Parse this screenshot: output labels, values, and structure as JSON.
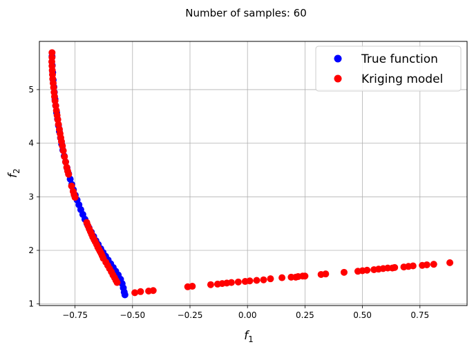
{
  "chart_data": {
    "type": "scatter",
    "title": "Number of samples: 60",
    "xlabel": "f",
    "xlabel_sub": "1",
    "ylabel": "f",
    "ylabel_sub": "2",
    "xlim": [
      -0.905,
      0.955
    ],
    "ylim": [
      0.97,
      5.9
    ],
    "xticks": [
      -0.75,
      -0.5,
      -0.25,
      0.0,
      0.25,
      0.5,
      0.75
    ],
    "xtick_labels": [
      "−0.75",
      "−0.50",
      "−0.25",
      "0.00",
      "0.25",
      "0.50",
      "0.75"
    ],
    "yticks": [
      1,
      2,
      3,
      4,
      5
    ],
    "ytick_labels": [
      "1",
      "2",
      "3",
      "4",
      "5"
    ],
    "grid": true,
    "legend_position": "top-right",
    "series": [
      {
        "name": "True function",
        "color": "#0000ff",
        "points": [
          [
            -0.85,
            5.62
          ],
          [
            -0.849,
            5.45
          ],
          [
            -0.847,
            5.32
          ],
          [
            -0.845,
            5.18
          ],
          [
            -0.842,
            5.05
          ],
          [
            -0.84,
            4.95
          ],
          [
            -0.837,
            4.82
          ],
          [
            -0.834,
            4.7
          ],
          [
            -0.83,
            4.57
          ],
          [
            -0.826,
            4.45
          ],
          [
            -0.822,
            4.33
          ],
          [
            -0.818,
            4.22
          ],
          [
            -0.813,
            4.1
          ],
          [
            -0.808,
            3.98
          ],
          [
            -0.803,
            3.87
          ],
          [
            -0.797,
            3.76
          ],
          [
            -0.791,
            3.65
          ],
          [
            -0.785,
            3.54
          ],
          [
            -0.778,
            3.43
          ],
          [
            -0.771,
            3.33
          ],
          [
            -0.764,
            3.23
          ],
          [
            -0.757,
            3.13
          ],
          [
            -0.749,
            3.03
          ],
          [
            -0.741,
            2.94
          ],
          [
            -0.733,
            2.85
          ],
          [
            -0.725,
            2.76
          ],
          [
            -0.716,
            2.67
          ],
          [
            -0.707,
            2.58
          ],
          [
            -0.698,
            2.5
          ],
          [
            -0.689,
            2.42
          ],
          [
            -0.679,
            2.34
          ],
          [
            -0.669,
            2.26
          ],
          [
            -0.659,
            2.18
          ],
          [
            -0.649,
            2.11
          ],
          [
            -0.638,
            2.03
          ],
          [
            -0.628,
            1.96
          ],
          [
            -0.617,
            1.89
          ],
          [
            -0.606,
            1.82
          ],
          [
            -0.595,
            1.75
          ],
          [
            -0.584,
            1.68
          ],
          [
            -0.573,
            1.61
          ],
          [
            -0.562,
            1.54
          ],
          [
            -0.552,
            1.46
          ],
          [
            -0.545,
            1.38
          ],
          [
            -0.54,
            1.3
          ],
          [
            -0.536,
            1.22
          ],
          [
            -0.533,
            1.17
          ]
        ]
      },
      {
        "name": "Kriging model",
        "color": "#ff0000",
        "points": [
          [
            -0.85,
            5.69
          ],
          [
            -0.85,
            5.6
          ],
          [
            -0.851,
            5.52
          ],
          [
            -0.85,
            5.44
          ],
          [
            -0.849,
            5.36
          ],
          [
            -0.848,
            5.28
          ],
          [
            -0.847,
            5.2
          ],
          [
            -0.845,
            5.12
          ],
          [
            -0.843,
            5.04
          ],
          [
            -0.841,
            4.95
          ],
          [
            -0.839,
            4.87
          ],
          [
            -0.837,
            4.79
          ],
          [
            -0.834,
            4.7
          ],
          [
            -0.831,
            4.61
          ],
          [
            -0.828,
            4.52
          ],
          [
            -0.825,
            4.44
          ],
          [
            -0.822,
            4.35
          ],
          [
            -0.818,
            4.26
          ],
          [
            -0.815,
            4.18
          ],
          [
            -0.812,
            4.1
          ],
          [
            -0.809,
            4.03
          ],
          [
            -0.805,
            3.95
          ],
          [
            -0.801,
            3.86
          ],
          [
            -0.796,
            3.75
          ],
          [
            -0.791,
            3.65
          ],
          [
            -0.786,
            3.55
          ],
          [
            -0.782,
            3.48
          ],
          [
            -0.778,
            3.42
          ],
          [
            -0.765,
            3.2
          ],
          [
            -0.758,
            3.1
          ],
          [
            -0.754,
            3.04
          ],
          [
            -0.75,
            2.99
          ],
          [
            -0.699,
            2.52
          ],
          [
            -0.694,
            2.46
          ],
          [
            -0.688,
            2.4
          ],
          [
            -0.683,
            2.35
          ],
          [
            -0.678,
            2.3
          ],
          [
            -0.673,
            2.25
          ],
          [
            -0.667,
            2.2
          ],
          [
            -0.662,
            2.16
          ],
          [
            -0.656,
            2.11
          ],
          [
            -0.651,
            2.06
          ],
          [
            -0.646,
            2.02
          ],
          [
            -0.641,
            1.98
          ],
          [
            -0.636,
            1.94
          ],
          [
            -0.632,
            1.9
          ],
          [
            -0.627,
            1.85
          ],
          [
            -0.616,
            1.78
          ],
          [
            -0.608,
            1.72
          ],
          [
            -0.6,
            1.66
          ],
          [
            -0.592,
            1.6
          ],
          [
            -0.585,
            1.54
          ],
          [
            -0.578,
            1.49
          ],
          [
            -0.572,
            1.44
          ],
          [
            -0.567,
            1.4
          ],
          [
            -0.49,
            1.21
          ],
          [
            -0.465,
            1.23
          ],
          [
            -0.43,
            1.24
          ],
          [
            -0.41,
            1.25
          ],
          [
            -0.26,
            1.32
          ],
          [
            -0.24,
            1.33
          ],
          [
            -0.16,
            1.36
          ],
          [
            -0.13,
            1.37
          ],
          [
            -0.11,
            1.38
          ],
          [
            -0.09,
            1.39
          ],
          [
            -0.07,
            1.4
          ],
          [
            -0.04,
            1.41
          ],
          [
            -0.01,
            1.42
          ],
          [
            0.01,
            1.43
          ],
          [
            0.04,
            1.44
          ],
          [
            0.07,
            1.45
          ],
          [
            0.1,
            1.47
          ],
          [
            0.15,
            1.49
          ],
          [
            0.19,
            1.5
          ],
          [
            0.21,
            1.5
          ],
          [
            0.22,
            1.51
          ],
          [
            0.24,
            1.52
          ],
          [
            0.25,
            1.52
          ],
          [
            0.32,
            1.55
          ],
          [
            0.34,
            1.56
          ],
          [
            0.42,
            1.59
          ],
          [
            0.48,
            1.61
          ],
          [
            0.5,
            1.62
          ],
          [
            0.52,
            1.63
          ],
          [
            0.55,
            1.64
          ],
          [
            0.57,
            1.65
          ],
          [
            0.59,
            1.66
          ],
          [
            0.61,
            1.67
          ],
          [
            0.63,
            1.67
          ],
          [
            0.64,
            1.68
          ],
          [
            0.68,
            1.69
          ],
          [
            0.7,
            1.7
          ],
          [
            0.72,
            1.71
          ],
          [
            0.76,
            1.72
          ],
          [
            0.78,
            1.73
          ],
          [
            0.81,
            1.74
          ],
          [
            0.88,
            1.77
          ]
        ]
      }
    ]
  }
}
